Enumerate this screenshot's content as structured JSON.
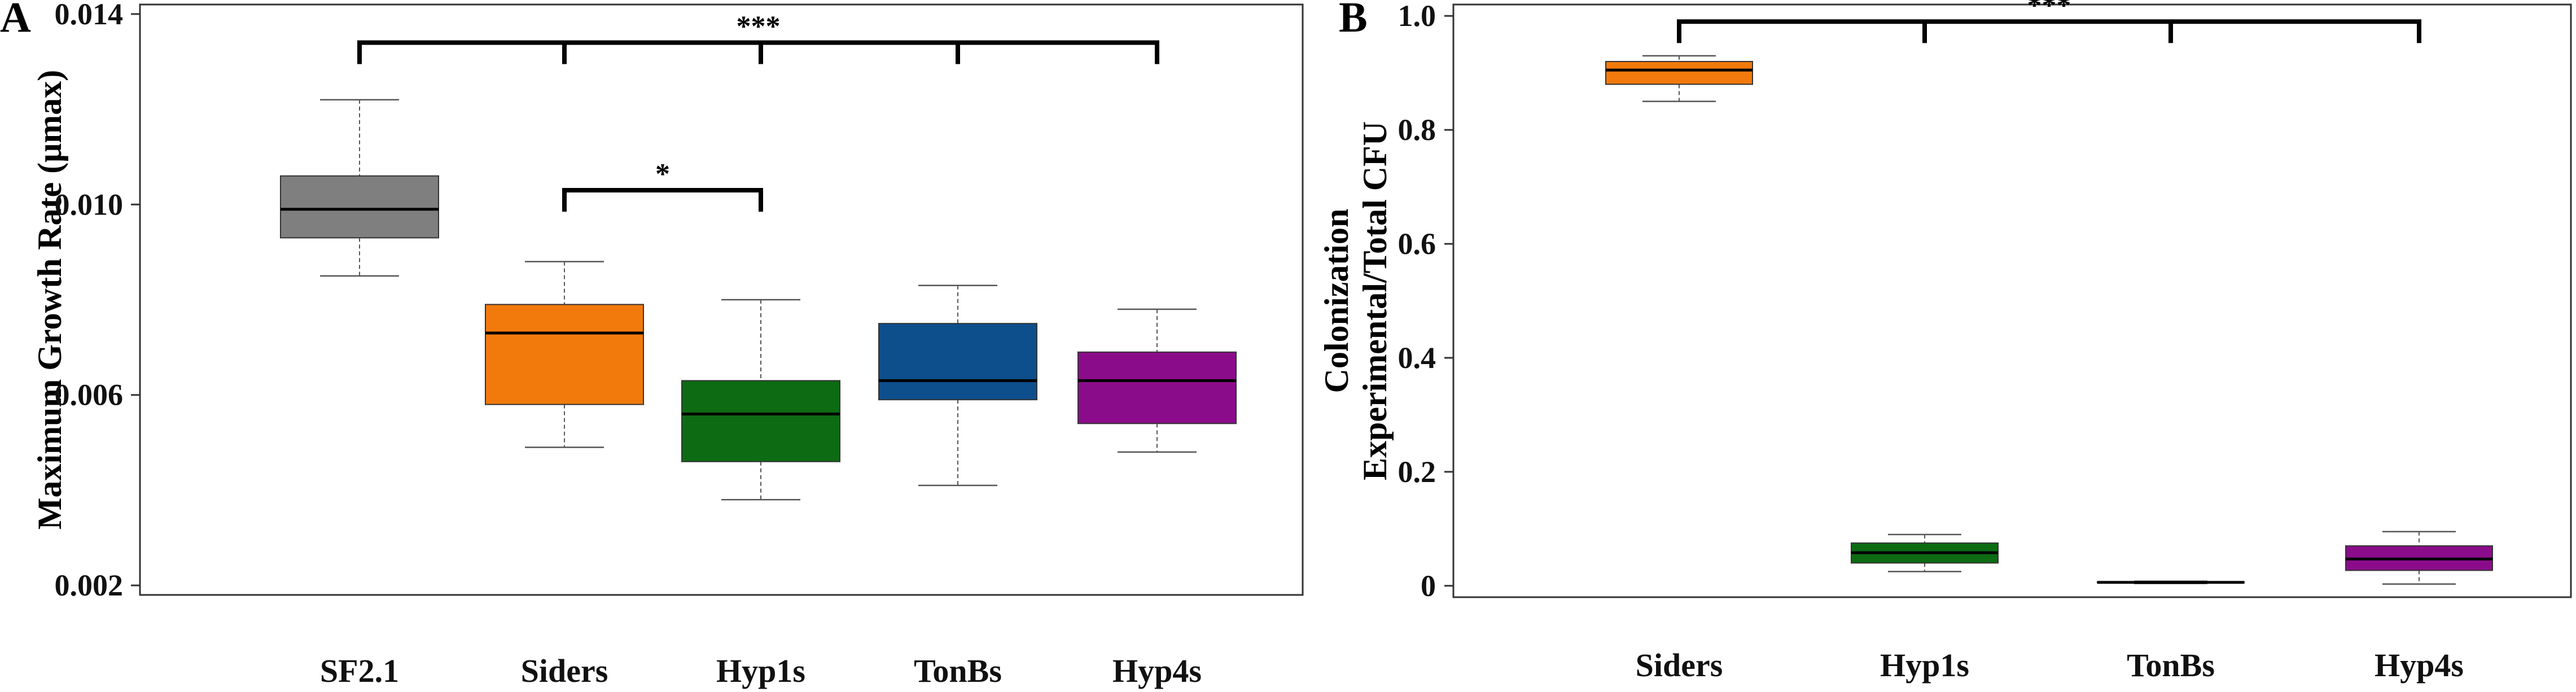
{
  "chart_data": [
    {
      "panel_label": "A",
      "type": "box",
      "ylabel": "Maximum Growth Rate (μmax)",
      "ylim": [
        0.0018,
        0.0142
      ],
      "yticks": [
        0.002,
        0.006,
        0.01,
        0.014
      ],
      "ytick_labels": [
        "0.002",
        "0.006",
        "0.010",
        "0.014"
      ],
      "categories": [
        "SF2.1",
        "Siders",
        "Hyp1s",
        "TonBs",
        "Hyp4s"
      ],
      "boxes": [
        {
          "name": "SF2.1",
          "color": "#7f7f7f",
          "min": 0.0085,
          "q1": 0.0093,
          "median": 0.0099,
          "q3": 0.0106,
          "max": 0.0122
        },
        {
          "name": "Siders",
          "color": "#f27a0c",
          "min": 0.0049,
          "q1": 0.0058,
          "median": 0.0073,
          "q3": 0.0079,
          "max": 0.0088
        },
        {
          "name": "Hyp1s",
          "color": "#0d6b13",
          "min": 0.0038,
          "q1": 0.0046,
          "median": 0.0056,
          "q3": 0.0063,
          "max": 0.008
        },
        {
          "name": "TonBs",
          "color": "#0d4f8c",
          "min": 0.0041,
          "q1": 0.0059,
          "median": 0.0063,
          "q3": 0.0075,
          "max": 0.0083
        },
        {
          "name": "Hyp4s",
          "color": "#8b0c8b",
          "min": 0.0048,
          "q1": 0.0054,
          "median": 0.0063,
          "q3": 0.0069,
          "max": 0.0078
        }
      ],
      "annotations": [
        {
          "text": "***",
          "from": "SF2.1",
          "to": [
            "Siders",
            "Hyp1s",
            "TonBs",
            "Hyp4s"
          ],
          "y": 0.0134
        },
        {
          "text": "*",
          "from": "Siders",
          "to": [
            "Hyp1s"
          ],
          "y": 0.0103
        }
      ]
    },
    {
      "panel_label": "B",
      "type": "box",
      "ylabel_lines": [
        "Colonization",
        "Experimental/Total CFU"
      ],
      "ylim": [
        -0.02,
        1.02
      ],
      "yticks": [
        0,
        0.2,
        0.4,
        0.6,
        0.8,
        1.0
      ],
      "ytick_labels": [
        "0",
        "0.2",
        "0.4",
        "0.6",
        "0.8",
        "1.0"
      ],
      "categories": [
        "Siders",
        "Hyp1s",
        "TonBs",
        "Hyp4s"
      ],
      "boxes": [
        {
          "name": "Siders",
          "color": "#f27a0c",
          "min": 0.85,
          "q1": 0.88,
          "median": 0.905,
          "q3": 0.92,
          "max": 0.93
        },
        {
          "name": "Hyp1s",
          "color": "#0d6b13",
          "min": 0.025,
          "q1": 0.04,
          "median": 0.058,
          "q3": 0.075,
          "max": 0.09
        },
        {
          "name": "TonBs",
          "color": "#0d4f8c",
          "min": 0.004,
          "q1": 0.005,
          "median": 0.006,
          "q3": 0.007,
          "max": 0.008
        },
        {
          "name": "Hyp4s",
          "color": "#8b0c8b",
          "min": 0.003,
          "q1": 0.027,
          "median": 0.047,
          "q3": 0.07,
          "max": 0.095
        }
      ],
      "annotations": [
        {
          "text": "***",
          "from": "Siders",
          "to": [
            "Hyp1s",
            "TonBs",
            "Hyp4s"
          ],
          "y": 0.99
        }
      ]
    }
  ]
}
